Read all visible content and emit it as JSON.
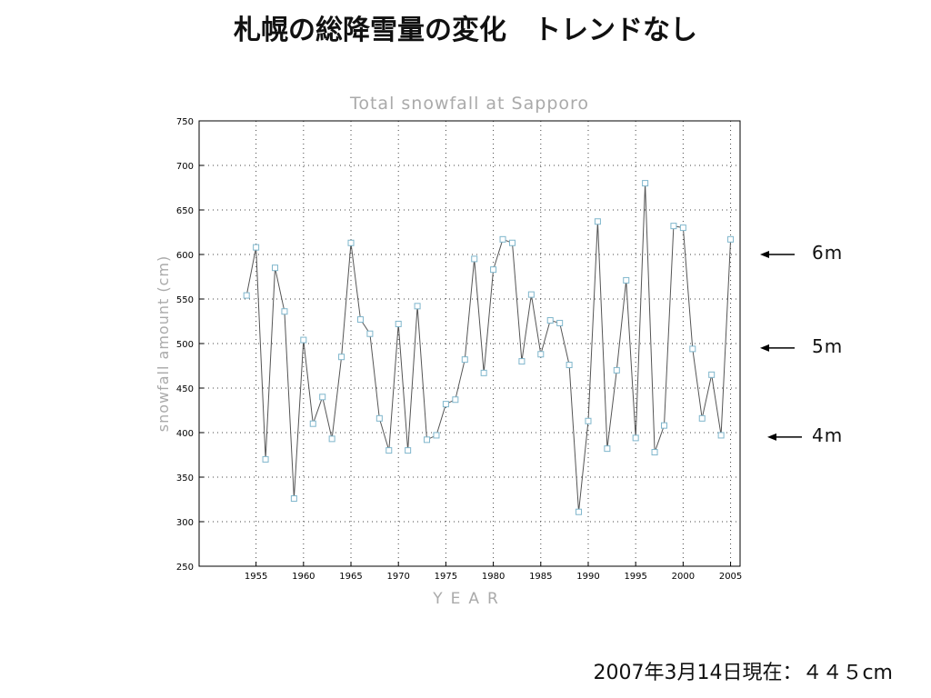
{
  "slide": {
    "title": "札幌の総降雪量の変化　トレンドなし",
    "footer_note": "2007年3月14日現在：４４５cm"
  },
  "annotations": [
    {
      "text": "6m",
      "value": 600
    },
    {
      "text": "5m",
      "value": 495
    },
    {
      "text": "4m",
      "value": 395
    }
  ],
  "chart_data": {
    "type": "line",
    "title": "Total snowfall at Sapporo",
    "xlabel": "YEAR",
    "ylabel": "snowfall amount (cm)",
    "xlim": [
      1949,
      2006
    ],
    "ylim": [
      250,
      750
    ],
    "x_ticks": [
      1955,
      1960,
      1965,
      1970,
      1975,
      1980,
      1985,
      1990,
      1995,
      2000,
      2005
    ],
    "y_ticks": [
      250,
      300,
      350,
      400,
      450,
      500,
      550,
      600,
      650,
      700,
      750
    ],
    "grid": true,
    "series": [
      {
        "x": [
          1954,
          1955,
          1956,
          1957,
          1958,
          1959,
          1960,
          1961,
          1962,
          1963,
          1964,
          1965,
          1966,
          1967,
          1968,
          1969,
          1970,
          1971,
          1972,
          1973,
          1974,
          1975,
          1976,
          1977,
          1978,
          1979,
          1980,
          1981,
          1982,
          1983,
          1984,
          1985,
          1986,
          1987,
          1988,
          1989,
          1990,
          1991,
          1992,
          1993,
          1994,
          1995,
          1996,
          1997,
          1998,
          1999,
          2000,
          2001,
          2002,
          2003,
          2004,
          2005
        ],
        "y": [
          554,
          608,
          370,
          585,
          536,
          326,
          504,
          410,
          440,
          393,
          485,
          613,
          527,
          511,
          416,
          380,
          522,
          380,
          542,
          392,
          397,
          432,
          437,
          482,
          595,
          467,
          583,
          617,
          613,
          480,
          555,
          488,
          526,
          523,
          476,
          311,
          413,
          637,
          382,
          470,
          571,
          394,
          680,
          378,
          408,
          632,
          630,
          494,
          416,
          465,
          397,
          617
        ]
      }
    ],
    "colors": {
      "line": "#555555",
      "marker": "#7fb6cc",
      "axis_text": "#aaaaaa"
    }
  }
}
